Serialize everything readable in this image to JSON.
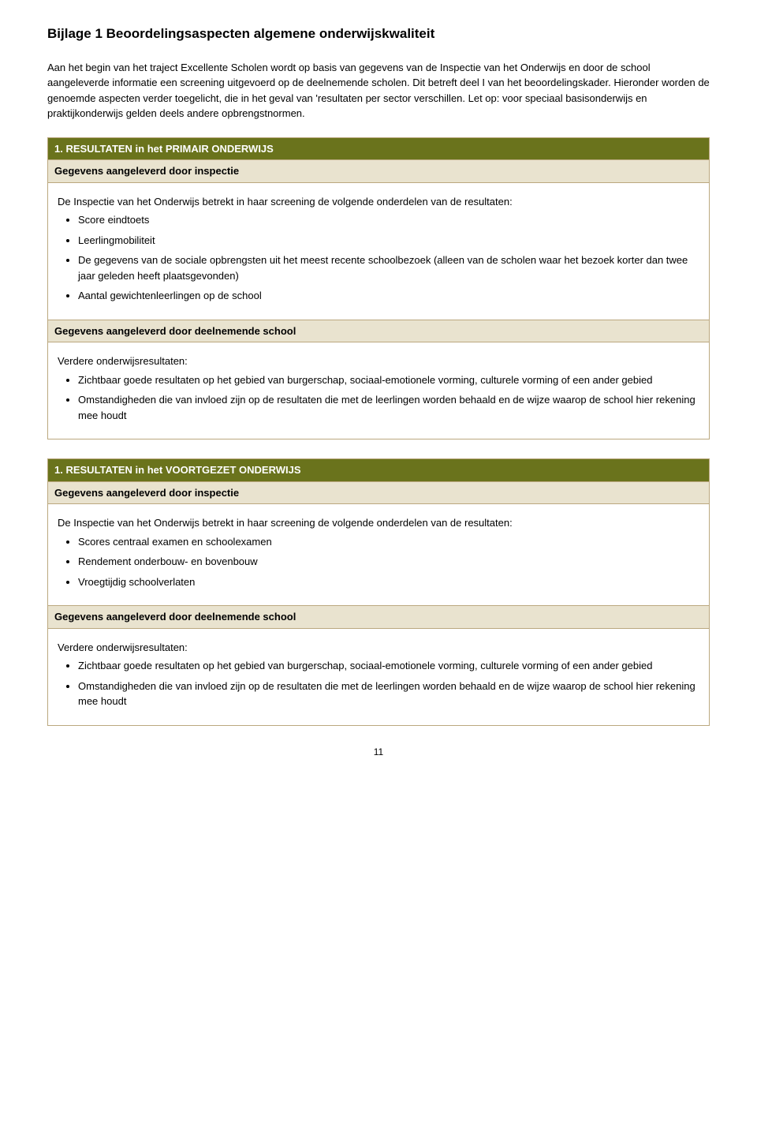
{
  "colors": {
    "header_bg": "#6a731c",
    "subheader_bg": "#e9e3cf",
    "border": "#bba87f",
    "text": "#000000",
    "header_text": "#ffffff"
  },
  "title": "Bijlage 1   Beoordelingsaspecten algemene onderwijskwaliteit",
  "intro": "Aan het begin van het traject Excellente Scholen wordt op basis van gegevens van de Inspectie van het Onderwijs en door de school aangeleverde informatie een screening uitgevoerd op de deelnemende scholen. Dit betreft deel I van het beoordelingskader. Hieronder worden de genoemde aspecten verder toegelicht, die in het geval van 'resultaten per sector verschillen. Let op: voor speciaal basisonderwijs en praktijkonderwijs gelden deels andere opbrengstnormen.",
  "section1": {
    "header": "1.  RESULTATEN in het PRIMAIR ONDERWIJS",
    "sub1": "Gegevens aangeleverd door inspectie",
    "content1_lead": "De Inspectie van het Onderwijs betrekt in haar screening de volgende onderdelen van de resultaten:",
    "content1_items": [
      "Score eindtoets",
      "Leerlingmobiliteit",
      "De gegevens van de sociale opbrengsten uit het meest recente schoolbezoek (alleen van de scholen waar het bezoek korter dan twee jaar geleden heeft plaatsgevonden)",
      "Aantal gewichtenleerlingen op de school"
    ],
    "sub2": "Gegevens aangeleverd door deelnemende school",
    "content2_lead": "Verdere onderwijsresultaten:",
    "content2_items": [
      "Zichtbaar goede resultaten op het gebied van burgerschap, sociaal-emotionele vorming, culturele vorming of een ander gebied",
      "Omstandigheden die van invloed zijn op de resultaten die met de leerlingen worden behaald en de wijze waarop de school hier rekening mee houdt"
    ]
  },
  "section2": {
    "header": "1.  RESULTATEN in het VOORTGEZET ONDERWIJS",
    "sub1": "Gegevens aangeleverd door inspectie",
    "content1_lead": "De Inspectie van het Onderwijs betrekt in haar screening de volgende onderdelen van de resultaten:",
    "content1_items": [
      "Scores centraal examen en schoolexamen",
      "Rendement onderbouw- en bovenbouw",
      "Vroegtijdig schoolverlaten"
    ],
    "sub2": "Gegevens aangeleverd door deelnemende school",
    "content2_lead": "Verdere onderwijsresultaten:",
    "content2_items": [
      "Zichtbaar goede resultaten op het gebied van burgerschap, sociaal-emotionele vorming, culturele vorming of een ander gebied",
      "Omstandigheden die van invloed zijn op de resultaten die met de leerlingen worden behaald en de wijze waarop de school hier rekening mee houdt"
    ]
  },
  "page_number": "11"
}
